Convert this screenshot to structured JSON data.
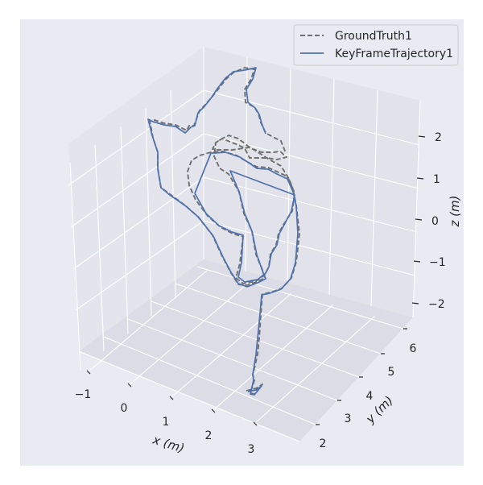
{
  "chart_data": {
    "type": "line",
    "projection": "3d",
    "title": "",
    "xlabel": "x (m)",
    "ylabel": "y (m)",
    "zlabel": "z (m)",
    "x_ticks": [
      "−1",
      "0",
      "1",
      "2",
      "3"
    ],
    "y_ticks": [
      "2",
      "3",
      "4",
      "5",
      "6"
    ],
    "z_ticks": [
      "−2",
      "−1",
      "0",
      "1",
      "2"
    ],
    "grid": true,
    "legend_position": "top-right",
    "series": [
      {
        "name": "GroundTruth1",
        "style": "dashed",
        "color": "#6f6f6f",
        "points": [
          [
            306,
            485
          ],
          [
            318,
            482
          ],
          [
            326,
            477
          ],
          [
            316,
            489
          ],
          [
            311,
            488
          ],
          [
            316,
            472
          ],
          [
            314,
            465
          ],
          [
            320,
            440
          ],
          [
            322,
            420
          ],
          [
            324,
            390
          ],
          [
            326,
            365
          ],
          [
            336,
            363
          ],
          [
            350,
            358
          ],
          [
            362,
            345
          ],
          [
            368,
            325
          ],
          [
            372,
            290
          ],
          [
            368,
            255
          ],
          [
            364,
            235
          ],
          [
            357,
            219
          ],
          [
            344,
            213
          ],
          [
            333,
            208
          ],
          [
            319,
            207
          ],
          [
            309,
            202
          ],
          [
            294,
            193
          ],
          [
            277,
            188
          ],
          [
            262,
            189
          ],
          [
            248,
            193
          ],
          [
            238,
            199
          ],
          [
            233,
            213
          ],
          [
            235,
            230
          ],
          [
            243,
            248
          ],
          [
            258,
            268
          ],
          [
            274,
            282
          ],
          [
            289,
            290
          ],
          [
            302,
            294
          ],
          [
            298,
            327
          ],
          [
            293,
            345
          ],
          [
            302,
            352
          ],
          [
            318,
            349
          ],
          [
            329,
            341
          ],
          [
            334,
            331
          ],
          [
            336,
            315
          ],
          [
            343,
            304
          ],
          [
            346,
            290
          ],
          [
            352,
            279
          ],
          [
            363,
            262
          ],
          [
            366,
            240
          ],
          [
            359,
            222
          ],
          [
            349,
            206
          ],
          [
            333,
            197
          ],
          [
            319,
            188
          ],
          [
            309,
            182
          ],
          [
            296,
            172
          ],
          [
            284,
            168
          ],
          [
            276,
            172
          ],
          [
            268,
            177
          ],
          [
            264,
            185
          ],
          [
            270,
            186
          ],
          [
            289,
            186
          ],
          [
            309,
            183
          ],
          [
            325,
            189
          ],
          [
            340,
            189
          ],
          [
            348,
            188
          ],
          [
            356,
            195
          ],
          [
            344,
            198
          ],
          [
            332,
            196
          ],
          [
            318,
            196
          ],
          [
            310,
            196
          ],
          [
            304,
            184
          ],
          [
            296,
            180
          ],
          [
            276,
            172
          ],
          [
            268,
            177
          ],
          [
            266,
            194
          ],
          [
            273,
            209
          ],
          [
            284,
            216
          ],
          [
            297,
            238
          ],
          [
            303,
            265
          ],
          [
            313,
            287
          ],
          [
            318,
            316
          ],
          [
            326,
            335
          ],
          [
            329,
            345
          ],
          [
            319,
            350
          ],
          [
            307,
            354
          ],
          [
            296,
            353
          ],
          [
            286,
            337
          ],
          [
            276,
            318
          ],
          [
            264,
            292
          ],
          [
            246,
            269
          ],
          [
            230,
            255
          ],
          [
            211,
            241
          ],
          [
            200,
            233
          ],
          [
            196,
            209
          ],
          [
            196,
            189
          ],
          [
            190,
            171
          ],
          [
            186,
            150
          ],
          [
            192,
            149
          ],
          [
            204,
            153
          ],
          [
            218,
            155
          ],
          [
            232,
            162
          ],
          [
            235,
            156
          ],
          [
            241,
            156
          ],
          [
            248,
            137
          ],
          [
            254,
            131
          ],
          [
            262,
            122
          ],
          [
            270,
            112
          ],
          [
            281,
            98
          ],
          [
            290,
            90
          ],
          [
            304,
            84
          ],
          [
            316,
            86
          ],
          [
            312,
            98
          ],
          [
            304,
            111
          ],
          [
            305,
            127
          ],
          [
            316,
            133
          ],
          [
            321,
            141
          ],
          [
            324,
            152
          ],
          [
            330,
            165
          ],
          [
            339,
            170
          ],
          [
            349,
            175
          ],
          [
            355,
            190
          ]
        ]
      },
      {
        "name": "KeyFrameTrajectory1",
        "style": "solid",
        "color": "#4c72b0",
        "points": [
          [
            308,
            486
          ],
          [
            318,
            484
          ],
          [
            325,
            479
          ],
          [
            316,
            490
          ],
          [
            311,
            489
          ],
          [
            315,
            472
          ],
          [
            314,
            465
          ],
          [
            318,
            440
          ],
          [
            320,
            420
          ],
          [
            323,
            390
          ],
          [
            325,
            366
          ],
          [
            335,
            364
          ],
          [
            349,
            359
          ],
          [
            361,
            346
          ],
          [
            367,
            326
          ],
          [
            370,
            290
          ],
          [
            368,
            256
          ],
          [
            364,
            238
          ],
          [
            357,
            222
          ],
          [
            344,
            216
          ],
          [
            333,
            210
          ],
          [
            319,
            209
          ],
          [
            312,
            204
          ],
          [
            298,
            195
          ],
          [
            280,
            189
          ],
          [
            266,
            190
          ],
          [
            262,
            190
          ],
          [
            242,
            240
          ],
          [
            256,
            265
          ],
          [
            272,
            280
          ],
          [
            288,
            288
          ],
          [
            302,
            292
          ],
          [
            300,
            326
          ],
          [
            296,
            344
          ],
          [
            304,
            350
          ],
          [
            320,
            347
          ],
          [
            330,
            339
          ],
          [
            334,
            331
          ],
          [
            337,
            315
          ],
          [
            344,
            304
          ],
          [
            347,
            290
          ],
          [
            353,
            279
          ],
          [
            362,
            262
          ],
          [
            366,
            242
          ],
          [
            286,
            212
          ],
          [
            297,
            238
          ],
          [
            304,
            265
          ],
          [
            313,
            287
          ],
          [
            319,
            316
          ],
          [
            326,
            336
          ],
          [
            330,
            346
          ],
          [
            320,
            351
          ],
          [
            307,
            356
          ],
          [
            296,
            352
          ],
          [
            287,
            338
          ],
          [
            277,
            319
          ],
          [
            265,
            293
          ],
          [
            247,
            270
          ],
          [
            231,
            256
          ],
          [
            211,
            242
          ],
          [
            200,
            233
          ],
          [
            196,
            210
          ],
          [
            196,
            189
          ],
          [
            189,
            168
          ],
          [
            184,
            148
          ],
          [
            190,
            151
          ],
          [
            204,
            155
          ],
          [
            218,
            157
          ],
          [
            230,
            165
          ],
          [
            237,
            158
          ],
          [
            242,
            156
          ],
          [
            246,
            140
          ],
          [
            254,
            132
          ],
          [
            262,
            122
          ],
          [
            270,
            110
          ],
          [
            280,
            97
          ],
          [
            290,
            89
          ],
          [
            304,
            87
          ],
          [
            318,
            84
          ],
          [
            314,
            98
          ],
          [
            306,
            111
          ],
          [
            308,
            127
          ],
          [
            317,
            134
          ],
          [
            322,
            142
          ],
          [
            325,
            153
          ],
          [
            330,
            166
          ]
        ]
      }
    ]
  }
}
